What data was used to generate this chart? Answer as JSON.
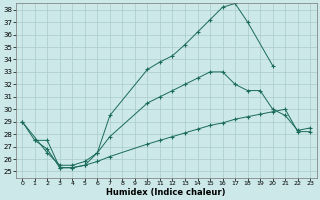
{
  "xlabel": "Humidex (Indice chaleur)",
  "bg_color": "#cce8e8",
  "grid_color": "#aacccc",
  "line_color": "#1a6b5a",
  "xlim": [
    -0.5,
    23.5
  ],
  "ylim": [
    24.5,
    38.5
  ],
  "xticks": [
    0,
    1,
    2,
    3,
    4,
    5,
    6,
    7,
    8,
    9,
    10,
    11,
    12,
    13,
    14,
    15,
    16,
    17,
    18,
    19,
    20,
    21,
    22,
    23
  ],
  "yticks": [
    25,
    26,
    27,
    28,
    29,
    30,
    31,
    32,
    33,
    34,
    35,
    36,
    37,
    38
  ],
  "line1_x": [
    0,
    1,
    2,
    3,
    4,
    5,
    6,
    7,
    10,
    11,
    12,
    13,
    14,
    15,
    16,
    17,
    18,
    20
  ],
  "line1_y": [
    29,
    27.5,
    27.5,
    25.3,
    25.3,
    25.5,
    26.5,
    29.5,
    33.2,
    33.8,
    34.3,
    35.2,
    36.2,
    37.2,
    38.2,
    38.5,
    37.0,
    33.5
  ],
  "line2_x": [
    0,
    2,
    3,
    4,
    5,
    6,
    7,
    10,
    11,
    12,
    13,
    14,
    15,
    16,
    17,
    18,
    19,
    20,
    21,
    22,
    23
  ],
  "line2_y": [
    29,
    26.5,
    25.5,
    25.5,
    25.8,
    26.5,
    27.8,
    30.5,
    31.0,
    31.5,
    32.0,
    32.5,
    33.0,
    33.0,
    32.0,
    31.5,
    31.5,
    30.0,
    29.5,
    28.3,
    28.5
  ],
  "line3_x": [
    1,
    2,
    3,
    4,
    5,
    6,
    7,
    10,
    11,
    12,
    13,
    14,
    15,
    16,
    17,
    18,
    19,
    20,
    21,
    22,
    23
  ],
  "line3_y": [
    27.5,
    26.8,
    25.3,
    25.3,
    25.5,
    25.8,
    26.2,
    27.2,
    27.5,
    27.8,
    28.1,
    28.4,
    28.7,
    28.9,
    29.2,
    29.4,
    29.6,
    29.8,
    30.0,
    28.2,
    28.2
  ]
}
